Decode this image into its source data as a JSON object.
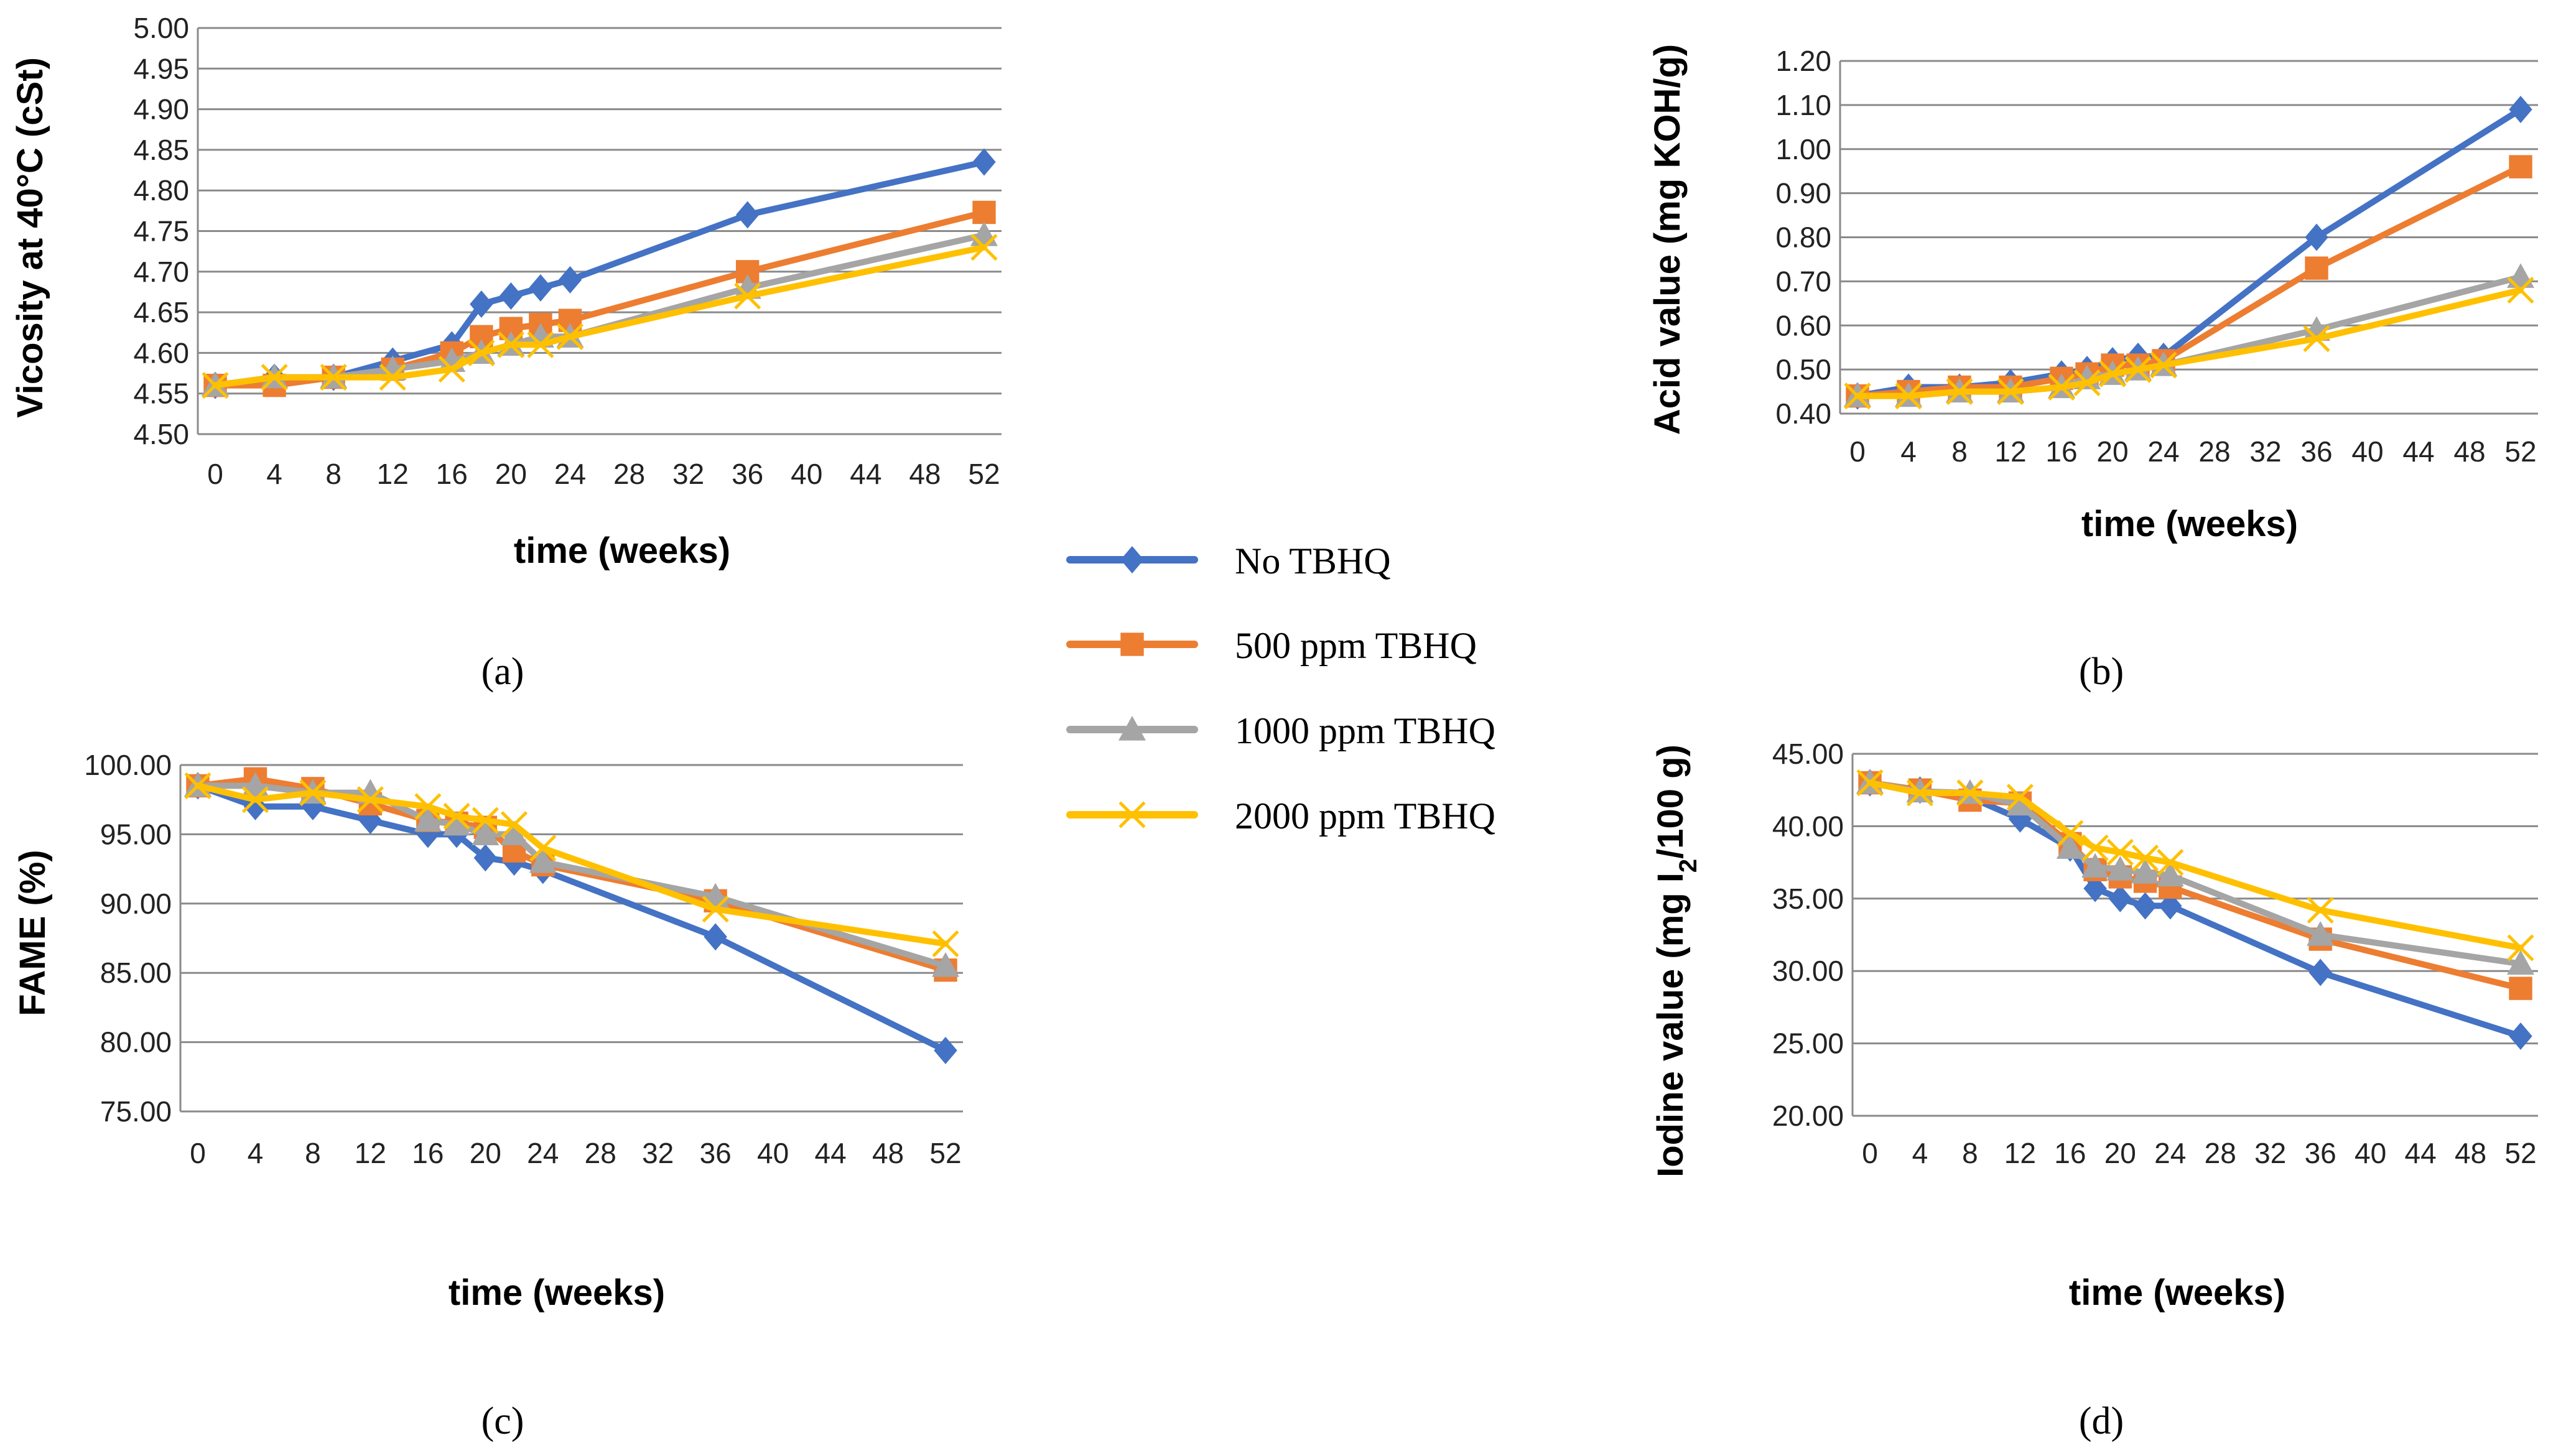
{
  "legend": [
    {
      "name": "No TBHQ",
      "color": "#4472C4",
      "marker": "diamond"
    },
    {
      "name": "500 ppm TBHQ",
      "color": "#ED7D31",
      "marker": "square"
    },
    {
      "name": "1000 ppm TBHQ",
      "color": "#A5A5A5",
      "marker": "triangle"
    },
    {
      "name": "2000 ppm TBHQ",
      "color": "#FFC000",
      "marker": "x"
    }
  ],
  "chart_data": [
    {
      "type": "line",
      "panel": "(a)",
      "xlabel": "time (weeks)",
      "ylabel": "Vicosity at 40°C (cSt)",
      "ylim": [
        4.5,
        5.0
      ],
      "yticks": [
        "4.50",
        "4.55",
        "4.60",
        "4.65",
        "4.70",
        "4.75",
        "4.80",
        "4.85",
        "4.90",
        "4.95",
        "5.00"
      ],
      "xticks": [
        "0",
        "4",
        "8",
        "12",
        "16",
        "20",
        "24",
        "28",
        "32",
        "36",
        "40",
        "44",
        "48",
        "52"
      ],
      "x": [
        0,
        4,
        8,
        12,
        16,
        18,
        20,
        22,
        24,
        36,
        52
      ],
      "series": [
        {
          "name": "No TBHQ",
          "values": [
            4.56,
            4.57,
            4.57,
            4.59,
            4.61,
            4.66,
            4.67,
            4.68,
            4.69,
            4.77,
            4.835
          ]
        },
        {
          "name": "500 ppm TBHQ",
          "values": [
            4.56,
            4.56,
            4.57,
            4.58,
            4.6,
            4.62,
            4.63,
            4.635,
            4.64,
            4.7,
            4.773
          ]
        },
        {
          "name": "1000 ppm TBHQ",
          "values": [
            4.56,
            4.57,
            4.57,
            4.58,
            4.59,
            4.6,
            4.61,
            4.62,
            4.62,
            4.68,
            4.745
          ]
        },
        {
          "name": "2000 ppm TBHQ",
          "values": [
            4.56,
            4.57,
            4.57,
            4.57,
            4.58,
            4.6,
            4.61,
            4.61,
            4.62,
            4.67,
            4.73
          ]
        }
      ]
    },
    {
      "type": "line",
      "panel": "(b)",
      "xlabel": "time (weeks)",
      "ylabel": "Acid value (mg KOH/g)",
      "ylim": [
        0.4,
        1.2
      ],
      "yticks": [
        "0.40",
        "0.50",
        "0.60",
        "0.70",
        "0.80",
        "0.90",
        "1.00",
        "1.10",
        "1.20"
      ],
      "xticks": [
        "0",
        "4",
        "8",
        "12",
        "16",
        "20",
        "24",
        "28",
        "32",
        "36",
        "40",
        "44",
        "48",
        "52"
      ],
      "x": [
        0,
        4,
        8,
        12,
        16,
        18,
        20,
        22,
        24,
        36,
        52
      ],
      "series": [
        {
          "name": "No TBHQ",
          "values": [
            0.44,
            0.46,
            0.46,
            0.47,
            0.49,
            0.5,
            0.52,
            0.53,
            0.53,
            0.8,
            1.09
          ]
        },
        {
          "name": "500 ppm TBHQ",
          "values": [
            0.44,
            0.45,
            0.46,
            0.46,
            0.48,
            0.49,
            0.51,
            0.51,
            0.52,
            0.73,
            0.96
          ]
        },
        {
          "name": "1000 ppm TBHQ",
          "values": [
            0.44,
            0.44,
            0.45,
            0.45,
            0.46,
            0.48,
            0.49,
            0.5,
            0.51,
            0.59,
            0.71
          ]
        },
        {
          "name": "2000 ppm TBHQ",
          "values": [
            0.44,
            0.44,
            0.45,
            0.45,
            0.46,
            0.47,
            0.49,
            0.5,
            0.51,
            0.57,
            0.68
          ]
        }
      ]
    },
    {
      "type": "line",
      "panel": "(c)",
      "xlabel": "time (weeks)",
      "ylabel": "FAME (%)",
      "ylim": [
        75.0,
        100.0
      ],
      "yticks": [
        "75.00",
        "80.00",
        "85.00",
        "90.00",
        "95.00",
        "100.00"
      ],
      "xticks": [
        "0",
        "4",
        "8",
        "12",
        "16",
        "20",
        "24",
        "28",
        "32",
        "36",
        "40",
        "44",
        "48",
        "52"
      ],
      "x": [
        0,
        4,
        8,
        12,
        16,
        18,
        20,
        22,
        24,
        36,
        52
      ],
      "series": [
        {
          "name": "No TBHQ",
          "values": [
            98.5,
            97.0,
            97.0,
            96.0,
            95.0,
            95.0,
            93.3,
            93.0,
            92.4,
            87.6,
            79.4
          ]
        },
        {
          "name": "500 ppm TBHQ",
          "values": [
            98.5,
            99.0,
            98.3,
            97.2,
            96.0,
            95.8,
            95.5,
            93.8,
            92.8,
            90.2,
            85.2
          ]
        },
        {
          "name": "1000 ppm TBHQ",
          "values": [
            98.5,
            98.5,
            98.0,
            98.0,
            96.0,
            95.7,
            95.0,
            95.0,
            93.0,
            90.5,
            85.5
          ]
        },
        {
          "name": "2000 ppm TBHQ",
          "values": [
            98.5,
            97.5,
            98.0,
            97.5,
            97.0,
            96.3,
            96.0,
            95.7,
            94.0,
            89.6,
            87.1
          ]
        }
      ]
    },
    {
      "type": "line",
      "panel": "(d)",
      "xlabel": "time (weeks)",
      "ylabel": "Iodine value (mg I2/100 g)",
      "ylim": [
        20.0,
        45.0
      ],
      "yticks": [
        "20.00",
        "25.00",
        "30.00",
        "35.00",
        "40.00",
        "45.00"
      ],
      "xticks": [
        "0",
        "4",
        "8",
        "12",
        "16",
        "20",
        "24",
        "28",
        "32",
        "36",
        "40",
        "44",
        "48",
        "52"
      ],
      "x": [
        0,
        4,
        8,
        12,
        16,
        18,
        20,
        22,
        24,
        36,
        52
      ],
      "series": [
        {
          "name": "No TBHQ",
          "values": [
            43.0,
            42.5,
            42.0,
            40.5,
            38.5,
            35.7,
            35.0,
            34.5,
            34.5,
            29.9,
            25.5
          ]
        },
        {
          "name": "500 ppm TBHQ",
          "values": [
            43.0,
            42.5,
            41.8,
            41.6,
            38.8,
            37.0,
            36.5,
            36.2,
            35.8,
            32.2,
            28.8
          ]
        },
        {
          "name": "1000 ppm TBHQ",
          "values": [
            43.0,
            42.4,
            42.3,
            41.5,
            38.5,
            37.2,
            37.0,
            36.8,
            36.6,
            32.5,
            30.5
          ]
        },
        {
          "name": "2000 ppm TBHQ",
          "values": [
            43.0,
            42.3,
            42.3,
            42.0,
            39.5,
            38.5,
            38.2,
            37.8,
            37.5,
            34.2,
            31.6
          ]
        }
      ]
    }
  ]
}
